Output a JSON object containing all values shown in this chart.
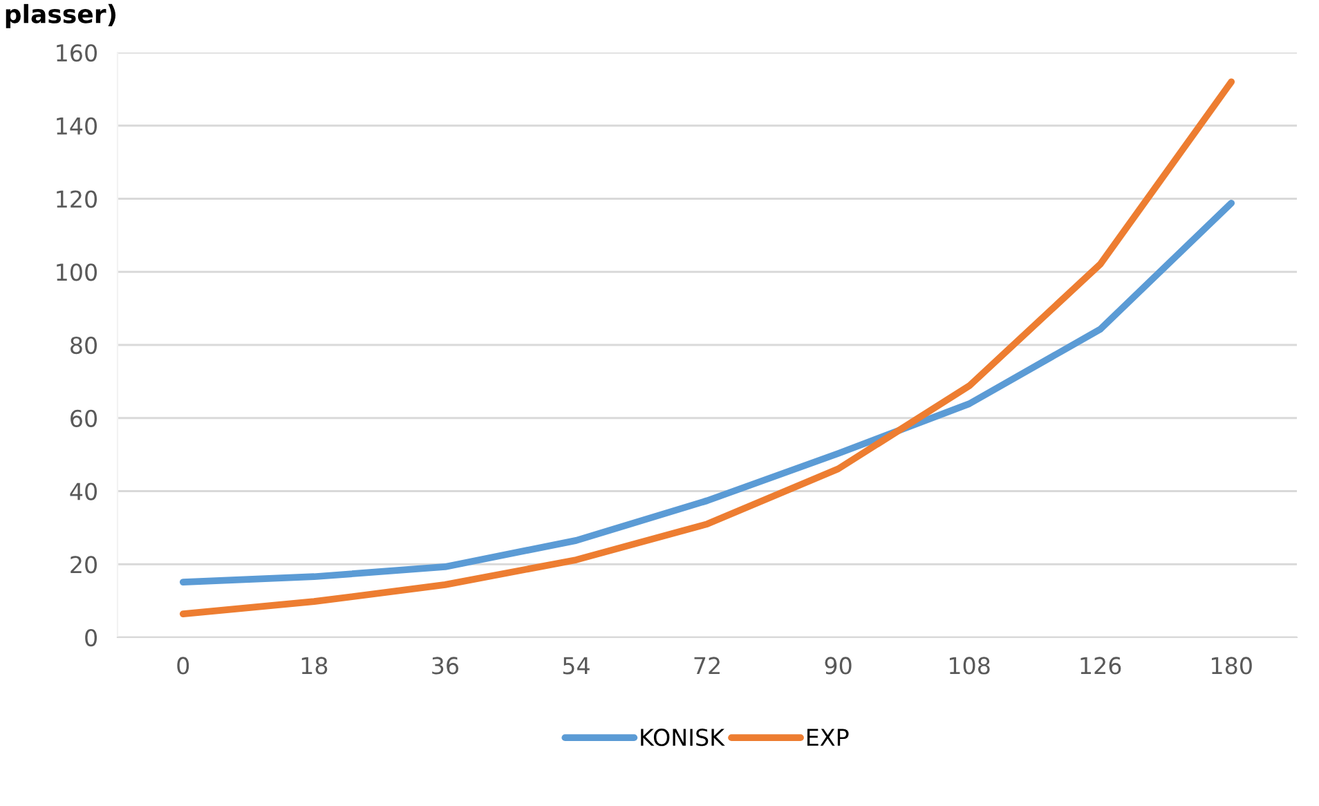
{
  "chart_data": {
    "type": "line",
    "title": "plasser)",
    "categories": [
      "0",
      "18",
      "36",
      "54",
      "72",
      "90",
      "108",
      "126",
      "180"
    ],
    "series": [
      {
        "name": "KONISK",
        "color": "#5b9bd5",
        "values": [
          15.1,
          16.6,
          19.3,
          26.5,
          37.4,
          50.3,
          63.9,
          84.3,
          118.8
        ]
      },
      {
        "name": "EXP",
        "color": "#ed7d31",
        "values": [
          6.4,
          9.8,
          14.4,
          21.2,
          31,
          46.1,
          68.8,
          102.1,
          152
        ]
      }
    ],
    "ylim": [
      0,
      160
    ],
    "yticks": [
      0,
      20,
      40,
      60,
      80,
      100,
      120,
      140,
      160
    ],
    "grid": "y",
    "legend": "bottom",
    "marker": "none",
    "line_style": "solid"
  }
}
